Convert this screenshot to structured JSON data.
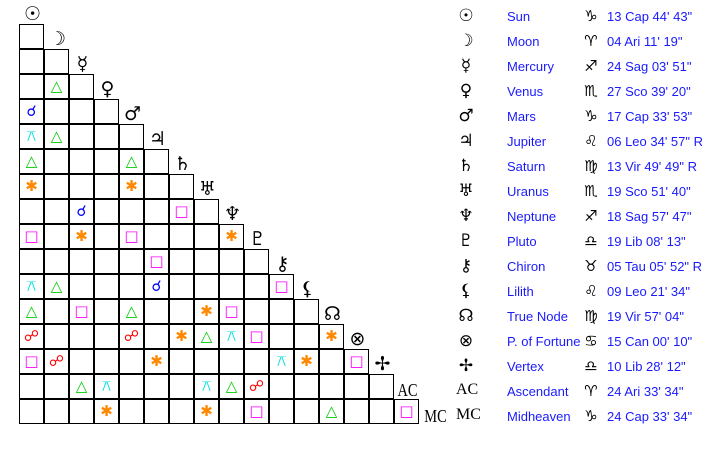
{
  "bodies": [
    {
      "name": "Sun",
      "glyph": "☉",
      "sign_glyph": "♑",
      "position": "13 Cap 44' 43\""
    },
    {
      "name": "Moon",
      "glyph": "☽",
      "sign_glyph": "♈",
      "position": "04 Ari 11' 19\""
    },
    {
      "name": "Mercury",
      "glyph": "☿",
      "sign_glyph": "♐",
      "position": "24 Sag 03' 51\""
    },
    {
      "name": "Venus",
      "glyph": "♀",
      "sign_glyph": "♏",
      "position": "27 Sco 39' 20\""
    },
    {
      "name": "Mars",
      "glyph": "♂",
      "sign_glyph": "♑",
      "position": "17 Cap 33' 53\""
    },
    {
      "name": "Jupiter",
      "glyph": "♃",
      "sign_glyph": "♌",
      "position": "06 Leo 34' 57\" R"
    },
    {
      "name": "Saturn",
      "glyph": "♄",
      "sign_glyph": "♍",
      "position": "13 Vir 49' 49\" R"
    },
    {
      "name": "Uranus",
      "glyph": "♅",
      "sign_glyph": "♏",
      "position": "19 Sco 51' 40\""
    },
    {
      "name": "Neptune",
      "glyph": "♆",
      "sign_glyph": "♐",
      "position": "18 Sag 57' 47\""
    },
    {
      "name": "Pluto",
      "glyph": "♇",
      "sign_glyph": "♎",
      "position": "19 Lib 08' 13\""
    },
    {
      "name": "Chiron",
      "glyph": "⚷",
      "sign_glyph": "♉",
      "position": "05 Tau 05' 52\" R"
    },
    {
      "name": "Lilith",
      "glyph": "⚸",
      "sign_glyph": "♌",
      "position": "09 Leo 21' 34\""
    },
    {
      "name": "True Node",
      "glyph": "☊",
      "sign_glyph": "♍",
      "position": "19 Vir 57' 04\""
    },
    {
      "name": "P. of Fortune",
      "glyph": "⊗",
      "sign_glyph": "♋",
      "position": "15 Can 00' 10\""
    },
    {
      "name": "Vertex",
      "glyph": "✢",
      "sign_glyph": "♎",
      "position": "10 Lib 28' 12\""
    },
    {
      "name": "Ascendant",
      "glyph": "AC",
      "sign_glyph": "♈",
      "position": "24 Ari 33' 34\""
    },
    {
      "name": "Midheaven",
      "glyph": "MC",
      "sign_glyph": "♑",
      "position": "24 Cap 33' 34\""
    }
  ],
  "aspect_types": {
    "conjunction": {
      "glyph": "☌",
      "color": "#0000ff"
    },
    "opposition": {
      "glyph": "☍",
      "color": "#ff0000"
    },
    "trine": {
      "glyph": "△",
      "color": "#00cc00"
    },
    "square": {
      "glyph": "□",
      "color": "#ff00ff"
    },
    "sextile": {
      "glyph": "✱",
      "color": "#ff8800"
    },
    "quincunx": {
      "glyph": "⚻",
      "color": "#00e0e0"
    }
  },
  "aspects": [
    [
      "Venus",
      "Moon",
      "trine"
    ],
    [
      "Mars",
      "Sun",
      "conjunction"
    ],
    [
      "Jupiter",
      "Sun",
      "quincunx"
    ],
    [
      "Jupiter",
      "Moon",
      "trine"
    ],
    [
      "Saturn",
      "Sun",
      "trine"
    ],
    [
      "Saturn",
      "Mars",
      "trine"
    ],
    [
      "Uranus",
      "Sun",
      "sextile"
    ],
    [
      "Uranus",
      "Mars",
      "sextile"
    ],
    [
      "Neptune",
      "Mercury",
      "conjunction"
    ],
    [
      "Neptune",
      "Saturn",
      "square"
    ],
    [
      "Pluto",
      "Sun",
      "square"
    ],
    [
      "Pluto",
      "Mercury",
      "sextile"
    ],
    [
      "Pluto",
      "Mars",
      "square"
    ],
    [
      "Pluto",
      "Neptune",
      "sextile"
    ],
    [
      "Chiron",
      "Jupiter",
      "square"
    ],
    [
      "Lilith",
      "Sun",
      "quincunx"
    ],
    [
      "Lilith",
      "Moon",
      "trine"
    ],
    [
      "Lilith",
      "Jupiter",
      "conjunction"
    ],
    [
      "Lilith",
      "Chiron",
      "square"
    ],
    [
      "True Node",
      "Sun",
      "trine"
    ],
    [
      "True Node",
      "Mercury",
      "square"
    ],
    [
      "True Node",
      "Mars",
      "trine"
    ],
    [
      "True Node",
      "Uranus",
      "sextile"
    ],
    [
      "True Node",
      "Neptune",
      "square"
    ],
    [
      "P. of Fortune",
      "Sun",
      "opposition"
    ],
    [
      "P. of Fortune",
      "Mars",
      "opposition"
    ],
    [
      "P. of Fortune",
      "Saturn",
      "sextile"
    ],
    [
      "P. of Fortune",
      "Uranus",
      "trine"
    ],
    [
      "P. of Fortune",
      "Neptune",
      "quincunx"
    ],
    [
      "P. of Fortune",
      "Pluto",
      "square"
    ],
    [
      "P. of Fortune",
      "True Node",
      "sextile"
    ],
    [
      "Vertex",
      "Sun",
      "square"
    ],
    [
      "Vertex",
      "Moon",
      "opposition"
    ],
    [
      "Vertex",
      "Jupiter",
      "sextile"
    ],
    [
      "Vertex",
      "Chiron",
      "quincunx"
    ],
    [
      "Vertex",
      "Lilith",
      "sextile"
    ],
    [
      "Vertex",
      "P. of Fortune",
      "square"
    ],
    [
      "Ascendant",
      "Mercury",
      "trine"
    ],
    [
      "Ascendant",
      "Venus",
      "quincunx"
    ],
    [
      "Ascendant",
      "Uranus",
      "quincunx"
    ],
    [
      "Ascendant",
      "Neptune",
      "trine"
    ],
    [
      "Ascendant",
      "Pluto",
      "opposition"
    ],
    [
      "Midheaven",
      "Venus",
      "sextile"
    ],
    [
      "Midheaven",
      "Uranus",
      "sextile"
    ],
    [
      "Midheaven",
      "Pluto",
      "square"
    ],
    [
      "Midheaven",
      "True Node",
      "trine"
    ],
    [
      "Midheaven",
      "Ascendant",
      "square"
    ]
  ]
}
